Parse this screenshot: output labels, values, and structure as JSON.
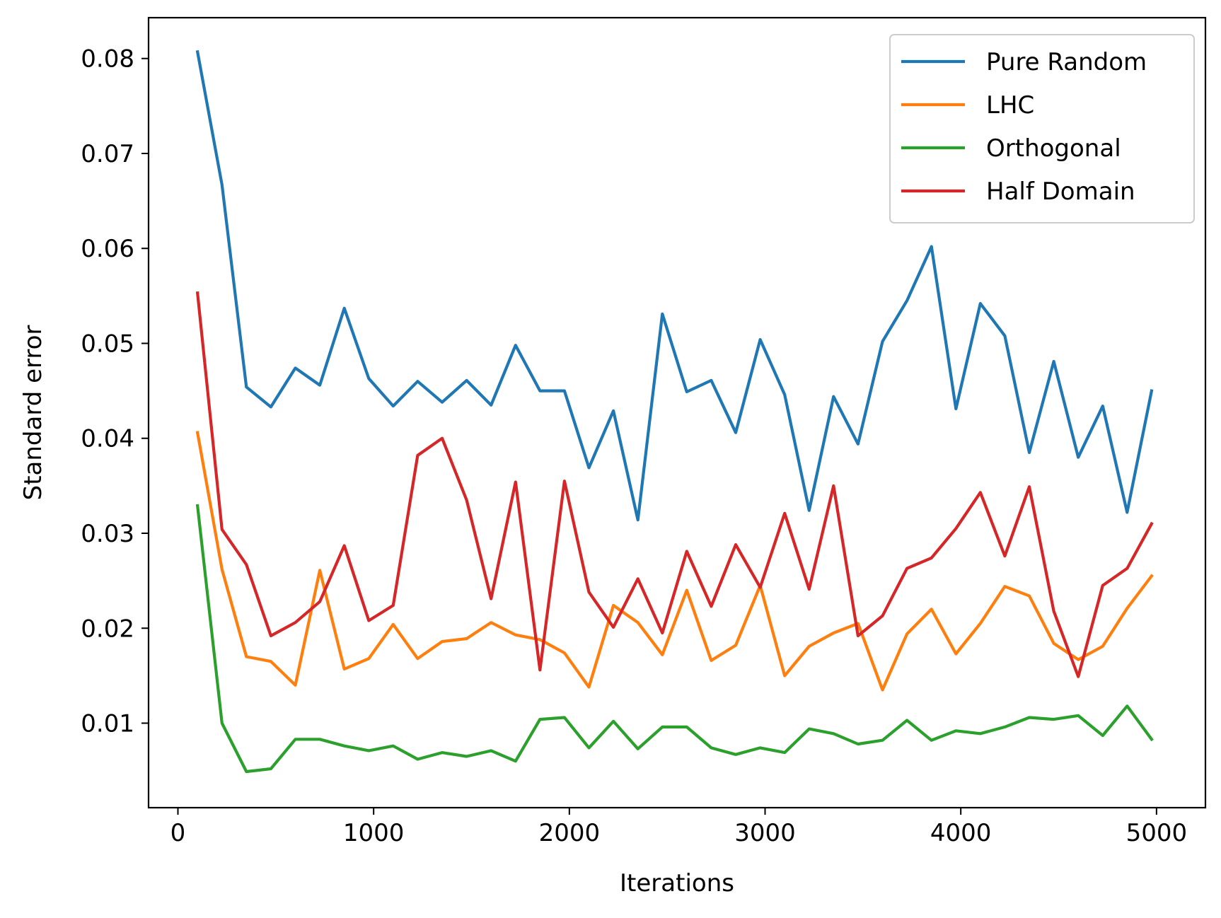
{
  "chart_data": {
    "type": "line",
    "title": "",
    "xlabel": "Iterations",
    "ylabel": "Standard error",
    "xlim": [
      -150,
      5250
    ],
    "ylim": [
      0.0011,
      0.0843
    ],
    "xticks": [
      0,
      1000,
      2000,
      3000,
      4000,
      5000
    ],
    "xtick_labels": [
      "0",
      "1000",
      "2000",
      "3000",
      "4000",
      "5000"
    ],
    "yticks": [
      0.01,
      0.02,
      0.03,
      0.04,
      0.05,
      0.06,
      0.07,
      0.08
    ],
    "ytick_labels": [
      "0.01",
      "0.02",
      "0.03",
      "0.04",
      "0.05",
      "0.06",
      "0.07",
      "0.08"
    ],
    "grid": false,
    "legend_position": "top-right",
    "x": [
      100,
      225,
      350,
      475,
      600,
      725,
      850,
      975,
      1100,
      1225,
      1350,
      1475,
      1600,
      1725,
      1850,
      1975,
      2100,
      2225,
      2350,
      2475,
      2600,
      2725,
      2850,
      2975,
      3100,
      3225,
      3350,
      3475,
      3600,
      3725,
      3850,
      3975,
      4100,
      4225,
      4350,
      4475,
      4600,
      4725,
      4850,
      4975
    ],
    "series": [
      {
        "name": "Pure Random",
        "color": "#1f77b4",
        "values": [
          0.0807,
          0.0667,
          0.0454,
          0.0433,
          0.0474,
          0.0456,
          0.0537,
          0.0463,
          0.0434,
          0.046,
          0.0438,
          0.0461,
          0.0435,
          0.0498,
          0.045,
          0.045,
          0.0369,
          0.0429,
          0.0314,
          0.0531,
          0.0449,
          0.0461,
          0.0406,
          0.0504,
          0.0446,
          0.0324,
          0.0444,
          0.0394,
          0.0502,
          0.0545,
          0.0602,
          0.0431,
          0.0542,
          0.0508,
          0.0385,
          0.0481,
          0.038,
          0.0434,
          0.0322,
          0.045
        ]
      },
      {
        "name": "LHC",
        "color": "#ff7f0e",
        "values": [
          0.0406,
          0.0262,
          0.017,
          0.0165,
          0.014,
          0.0261,
          0.0157,
          0.0168,
          0.0204,
          0.0168,
          0.0186,
          0.0189,
          0.0206,
          0.0193,
          0.0188,
          0.0174,
          0.0138,
          0.0224,
          0.0206,
          0.0172,
          0.024,
          0.0166,
          0.0182,
          0.0245,
          0.015,
          0.0181,
          0.0195,
          0.0205,
          0.0135,
          0.0194,
          0.022,
          0.0173,
          0.0205,
          0.0244,
          0.0234,
          0.0184,
          0.0167,
          0.0181,
          0.0221,
          0.0255
        ]
      },
      {
        "name": "Orthogonal",
        "color": "#2ca02c",
        "values": [
          0.0329,
          0.01,
          0.0049,
          0.0052,
          0.0083,
          0.0083,
          0.0076,
          0.0071,
          0.0076,
          0.0062,
          0.0069,
          0.0065,
          0.0071,
          0.006,
          0.0104,
          0.0106,
          0.0074,
          0.0102,
          0.0073,
          0.0096,
          0.0096,
          0.0074,
          0.0067,
          0.0074,
          0.0069,
          0.0094,
          0.0089,
          0.0078,
          0.0082,
          0.0103,
          0.0082,
          0.0092,
          0.0089,
          0.0096,
          0.0106,
          0.0104,
          0.0108,
          0.0087,
          0.0118,
          0.0083
        ]
      },
      {
        "name": "Half Domain",
        "color": "#d62728",
        "values": [
          0.0553,
          0.0304,
          0.0267,
          0.0192,
          0.0206,
          0.0228,
          0.0287,
          0.0208,
          0.0224,
          0.0382,
          0.04,
          0.0335,
          0.0231,
          0.0354,
          0.0156,
          0.0355,
          0.0238,
          0.0201,
          0.0252,
          0.0195,
          0.0281,
          0.0223,
          0.0288,
          0.0243,
          0.0321,
          0.0241,
          0.035,
          0.0192,
          0.0213,
          0.0263,
          0.0274,
          0.0305,
          0.0343,
          0.0276,
          0.0349,
          0.0218,
          0.0149,
          0.0245,
          0.0263,
          0.031
        ]
      }
    ]
  }
}
